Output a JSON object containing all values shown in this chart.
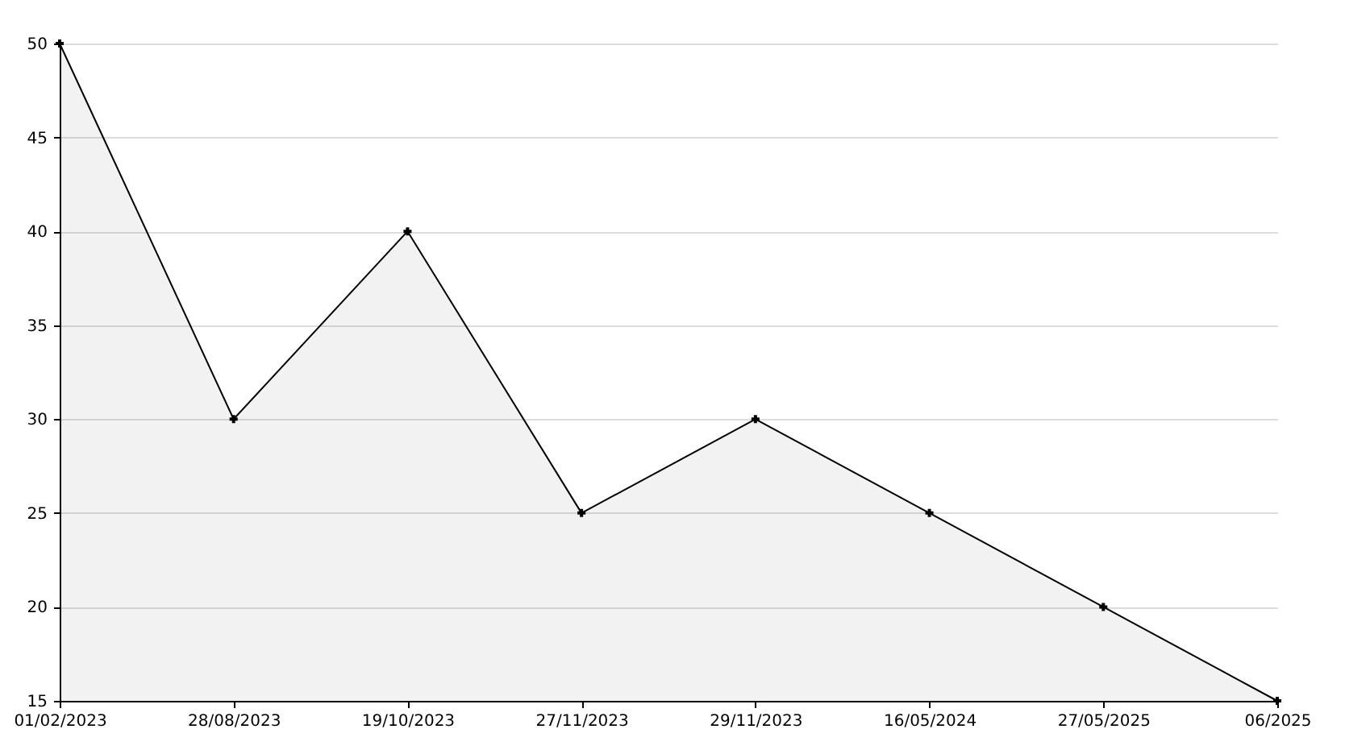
{
  "chart_data": {
    "type": "area",
    "categories": [
      "01/02/2023",
      "28/08/2023",
      "19/10/2023",
      "27/11/2023",
      "29/11/2023",
      "16/05/2024",
      "27/05/2025",
      "06/2025"
    ],
    "series": [
      {
        "color": "#000000",
        "values": [
          50,
          30,
          40,
          25,
          30,
          25,
          20,
          15
        ]
      }
    ],
    "ylim": [
      15,
      50
    ],
    "yticks": [
      15,
      20,
      25,
      30,
      35,
      40,
      45,
      50
    ],
    "grid": "y",
    "marker": "cross",
    "line_style": "solid"
  }
}
